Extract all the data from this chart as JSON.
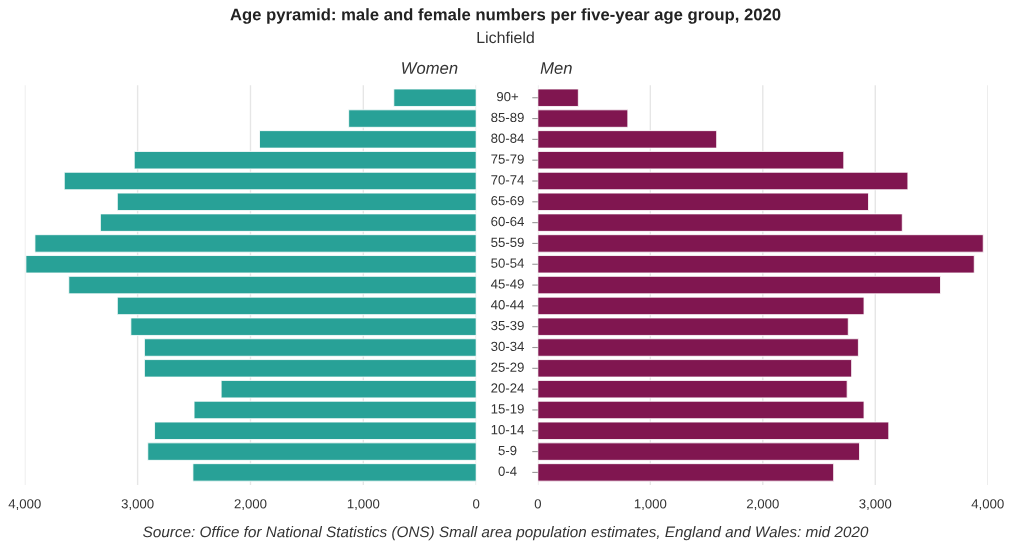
{
  "chart_data": [
    {
      "type": "bar",
      "orientation": "horizontal",
      "title": "Age pyramid: male and female numbers per five-year age group, 2020",
      "subtitle": "Lichfield",
      "categories": [
        "90+",
        "85-89",
        "80-84",
        "75-79",
        "70-74",
        "65-69",
        "60-64",
        "55-59",
        "50-54",
        "45-49",
        "40-44",
        "35-39",
        "30-34",
        "25-29",
        "20-24",
        "15-19",
        "10-14",
        "5-9",
        "0-4"
      ],
      "series": [
        {
          "name": "Women",
          "color": "#28a197",
          "values": [
            730,
            1130,
            1920,
            3030,
            3650,
            3180,
            3330,
            3910,
            3990,
            3610,
            3180,
            3060,
            2940,
            2940,
            2260,
            2500,
            2850,
            2910,
            2510
          ]
        }
      ],
      "xlim": [
        4000,
        0
      ],
      "xticks": [
        {
          "value": 4000,
          "label": "4,000"
        },
        {
          "value": 3000,
          "label": "3,000"
        },
        {
          "value": 2000,
          "label": "2,000"
        },
        {
          "value": 1000,
          "label": "1,000"
        },
        0
      ],
      "grid": "x",
      "legend": false,
      "annotations": [
        "Source: Office for National Statistics (ONS) Small area population estimates, England and Wales: mid 2020"
      ]
    },
    {
      "type": "bar",
      "orientation": "horizontal",
      "categories": [
        null,
        null,
        null,
        null,
        null,
        null,
        null,
        null,
        null,
        null,
        null,
        null,
        null,
        null,
        null,
        null,
        null,
        null,
        null
      ],
      "series": [
        {
          "name": "Men",
          "color": "#801650",
          "values": [
            360,
            800,
            1590,
            2720,
            3290,
            2940,
            3240,
            3960,
            3880,
            3580,
            2900,
            2760,
            2850,
            2790,
            2750,
            2900,
            3120,
            2860,
            2630
          ]
        }
      ],
      "xlim": [
        0,
        4000
      ],
      "xticks": [
        0,
        {
          "value": 1000,
          "label": "1,000"
        },
        {
          "value": 2000,
          "label": "2,000"
        },
        {
          "value": 3000,
          "label": "3,000"
        },
        {
          "value": 4000,
          "label": "4,000"
        }
      ],
      "grid": "x",
      "legend": false,
      "tick_labels": "x"
    }
  ]
}
